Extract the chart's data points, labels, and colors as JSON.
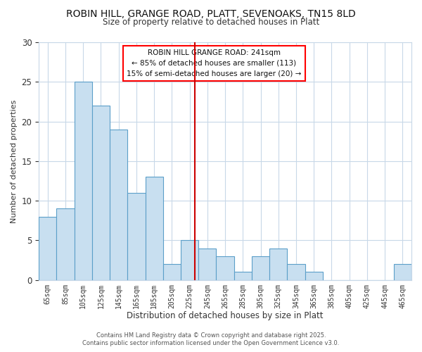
{
  "title": "ROBIN HILL, GRANGE ROAD, PLATT, SEVENOAKS, TN15 8LD",
  "subtitle": "Size of property relative to detached houses in Platt",
  "xlabel": "Distribution of detached houses by size in Platt",
  "ylabel": "Number of detached properties",
  "bin_labels": [
    "65sqm",
    "85sqm",
    "105sqm",
    "125sqm",
    "145sqm",
    "165sqm",
    "185sqm",
    "205sqm",
    "225sqm",
    "245sqm",
    "265sqm",
    "285sqm",
    "305sqm",
    "325sqm",
    "345sqm",
    "365sqm",
    "385sqm",
    "405sqm",
    "425sqm",
    "445sqm",
    "465sqm"
  ],
  "bar_values": [
    8,
    9,
    25,
    22,
    19,
    11,
    13,
    2,
    5,
    4,
    3,
    1,
    3,
    4,
    2,
    1,
    0,
    0,
    0,
    0,
    2
  ],
  "bar_color": "#c8dff0",
  "bar_edge_color": "#5b9fc9",
  "vline_color": "#cc0000",
  "annotation_title": "ROBIN HILL GRANGE ROAD: 241sqm",
  "annotation_line1": "← 85% of detached houses are smaller (113)",
  "annotation_line2": "15% of semi-detached houses are larger (20) →",
  "ylim": [
    0,
    30
  ],
  "yticks": [
    0,
    5,
    10,
    15,
    20,
    25,
    30
  ],
  "footer_line1": "Contains HM Land Registry data © Crown copyright and database right 2025.",
  "footer_line2": "Contains public sector information licensed under the Open Government Licence v3.0.",
  "bg_color": "#ffffff",
  "grid_color": "#c8d8e8",
  "title_fontsize": 10,
  "subtitle_fontsize": 9
}
